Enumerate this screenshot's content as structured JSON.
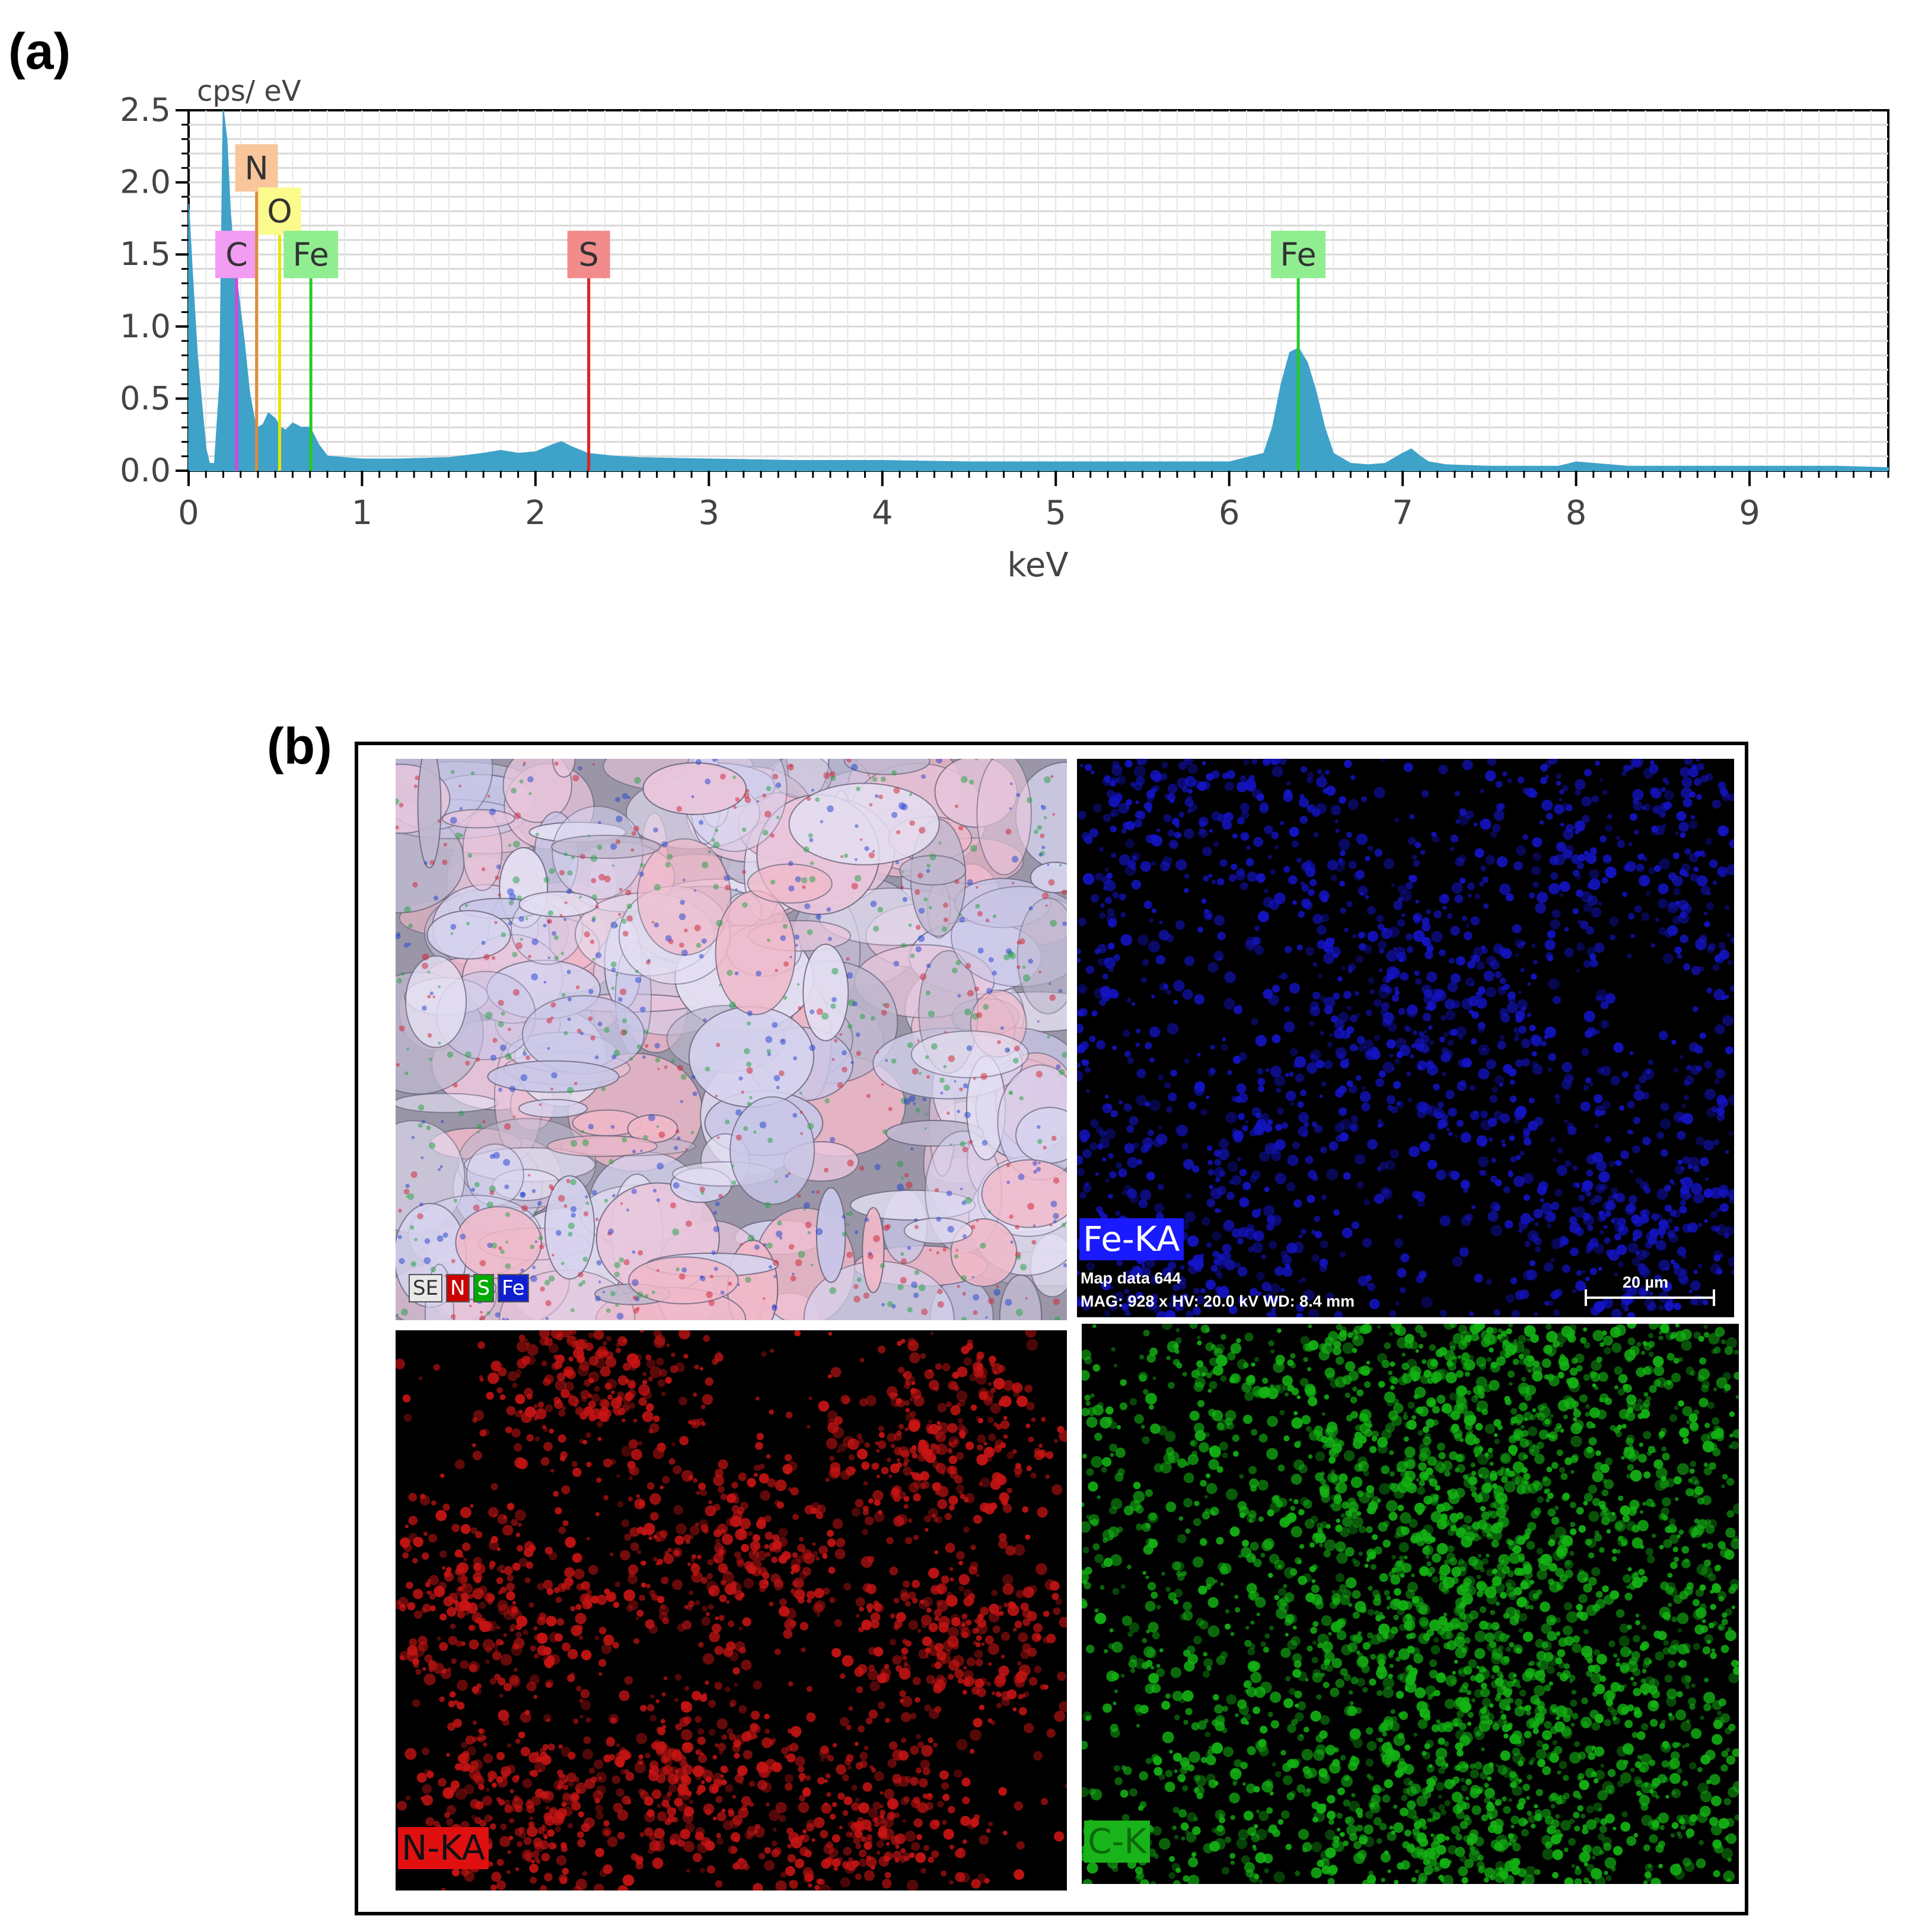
{
  "panel_labels": {
    "a": "(a)",
    "b": "(b)"
  },
  "chart_data": {
    "type": "area",
    "ylabel": "cps/ eV",
    "xlabel": "keV",
    "xlim": [
      0,
      9.8
    ],
    "ylim": [
      0,
      2.5
    ],
    "xticks": [
      "0",
      "1",
      "2",
      "3",
      "4",
      "5",
      "6",
      "7",
      "8",
      "9"
    ],
    "yticks": [
      "0.0",
      "0.5",
      "1.0",
      "1.5",
      "2.0",
      "2.5"
    ],
    "grid": true,
    "spectrum_color": "#3fa2c8",
    "series": [
      {
        "x": [
          0,
          0.02,
          0.05,
          0.08,
          0.1,
          0.12,
          0.15,
          0.18,
          0.2,
          0.22,
          0.24,
          0.26,
          0.28,
          0.3,
          0.32,
          0.35,
          0.38,
          0.4,
          0.43,
          0.46,
          0.5,
          0.53,
          0.56,
          0.6,
          0.65,
          0.7,
          0.75,
          0.8,
          0.9,
          1.0,
          1.2,
          1.5,
          1.7,
          1.8,
          1.9,
          2.0,
          2.1,
          2.15,
          2.2,
          2.3,
          2.45,
          2.6,
          3.0,
          3.5,
          4.0,
          4.5,
          5.0,
          5.5,
          6.0,
          6.2,
          6.25,
          6.3,
          6.35,
          6.4,
          6.45,
          6.5,
          6.55,
          6.6,
          6.7,
          6.8,
          6.9,
          7.0,
          7.05,
          7.1,
          7.15,
          7.25,
          7.5,
          7.9,
          8.0,
          8.1,
          8.3,
          8.6,
          9.0,
          9.3,
          9.5,
          9.8
        ],
        "y": [
          1.85,
          1.4,
          0.8,
          0.4,
          0.15,
          0.05,
          0.05,
          0.6,
          2.5,
          2.3,
          1.8,
          1.5,
          1.3,
          1.1,
          0.9,
          0.55,
          0.35,
          0.3,
          0.32,
          0.4,
          0.36,
          0.3,
          0.28,
          0.33,
          0.3,
          0.3,
          0.18,
          0.1,
          0.09,
          0.08,
          0.08,
          0.09,
          0.12,
          0.14,
          0.12,
          0.13,
          0.18,
          0.2,
          0.17,
          0.12,
          0.1,
          0.09,
          0.08,
          0.07,
          0.07,
          0.06,
          0.06,
          0.06,
          0.06,
          0.12,
          0.3,
          0.6,
          0.82,
          0.85,
          0.75,
          0.55,
          0.3,
          0.12,
          0.05,
          0.04,
          0.05,
          0.12,
          0.15,
          0.1,
          0.06,
          0.04,
          0.03,
          0.03,
          0.06,
          0.05,
          0.03,
          0.03,
          0.03,
          0.03,
          0.03,
          0.02
        ]
      }
    ],
    "annotations": [
      {
        "label": "C",
        "energy": 0.277,
        "line_color": "#e040e0",
        "box_color": "#f39cf3",
        "level": 1.5
      },
      {
        "label": "N",
        "energy": 0.392,
        "line_color": "#e08b3c",
        "box_color": "#f8c69a",
        "level": 2.1
      },
      {
        "label": "O",
        "energy": 0.525,
        "line_color": "#e6e600",
        "box_color": "#fbfb8c",
        "level": 1.8
      },
      {
        "label": "Fe",
        "energy": 0.705,
        "line_color": "#22cc22",
        "box_color": "#90ee90",
        "level": 1.5
      },
      {
        "label": "S",
        "energy": 2.307,
        "line_color": "#e02020",
        "box_color": "#f28b8b",
        "level": 1.5
      },
      {
        "label": "Fe",
        "energy": 6.398,
        "line_color": "#22cc22",
        "box_color": "#90ee90",
        "level": 1.5
      }
    ]
  },
  "maps": {
    "composite": {
      "legend": [
        {
          "label": "SE",
          "bg": "#e8e8e8",
          "fg": "#333333"
        },
        {
          "label": "N",
          "bg": "#cc0000",
          "fg": "#ffffff"
        },
        {
          "label": "S",
          "bg": "#00aa00",
          "fg": "#ffffff"
        },
        {
          "label": "Fe",
          "bg": "#1020d0",
          "fg": "#ffffff"
        }
      ]
    },
    "fe": {
      "tag": "Fe-KA",
      "tag_bg": "#1a1aff",
      "color": "#1414c8",
      "info_line1": "Map data 644",
      "info_line2": "MAG: 928 x  HV: 20.0 kV  WD: 8.4 mm",
      "scale": "20 µm"
    },
    "n": {
      "tag": "N-KA",
      "tag_bg": "#e01010",
      "tag_fg": "#111111",
      "color": "#c81414"
    },
    "c": {
      "tag": "C-K",
      "tag_bg": "#19b419",
      "tag_fg": "#0a6a0a",
      "color": "#14b414"
    }
  }
}
